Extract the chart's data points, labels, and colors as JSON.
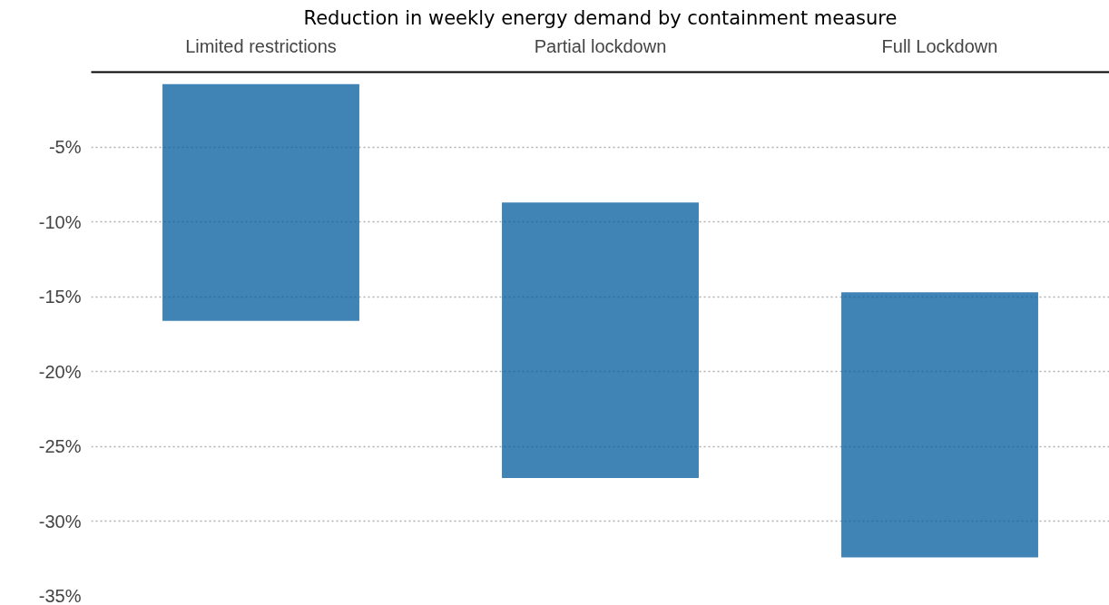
{
  "chart_data": {
    "type": "bar",
    "title": "Reduction in weekly energy demand by containment measure",
    "categories": [
      "Limited restrictions",
      "Partial lockdown",
      "Full Lockdown"
    ],
    "base": [
      -16.6,
      -27.1,
      -32.4
    ],
    "values": [
      15.8,
      18.4,
      17.7
    ],
    "color": "#00599c",
    "ylim": [
      -35,
      0
    ],
    "yticks": [
      {
        "value": -5,
        "label": "-5%"
      },
      {
        "value": -10,
        "label": "-10%"
      },
      {
        "value": -15,
        "label": "-15%"
      },
      {
        "value": -20,
        "label": "-20%"
      },
      {
        "value": -25,
        "label": "-25%"
      },
      {
        "value": -30,
        "label": "-30%"
      },
      {
        "value": -35,
        "label": "-35%"
      }
    ],
    "grid": "y"
  }
}
